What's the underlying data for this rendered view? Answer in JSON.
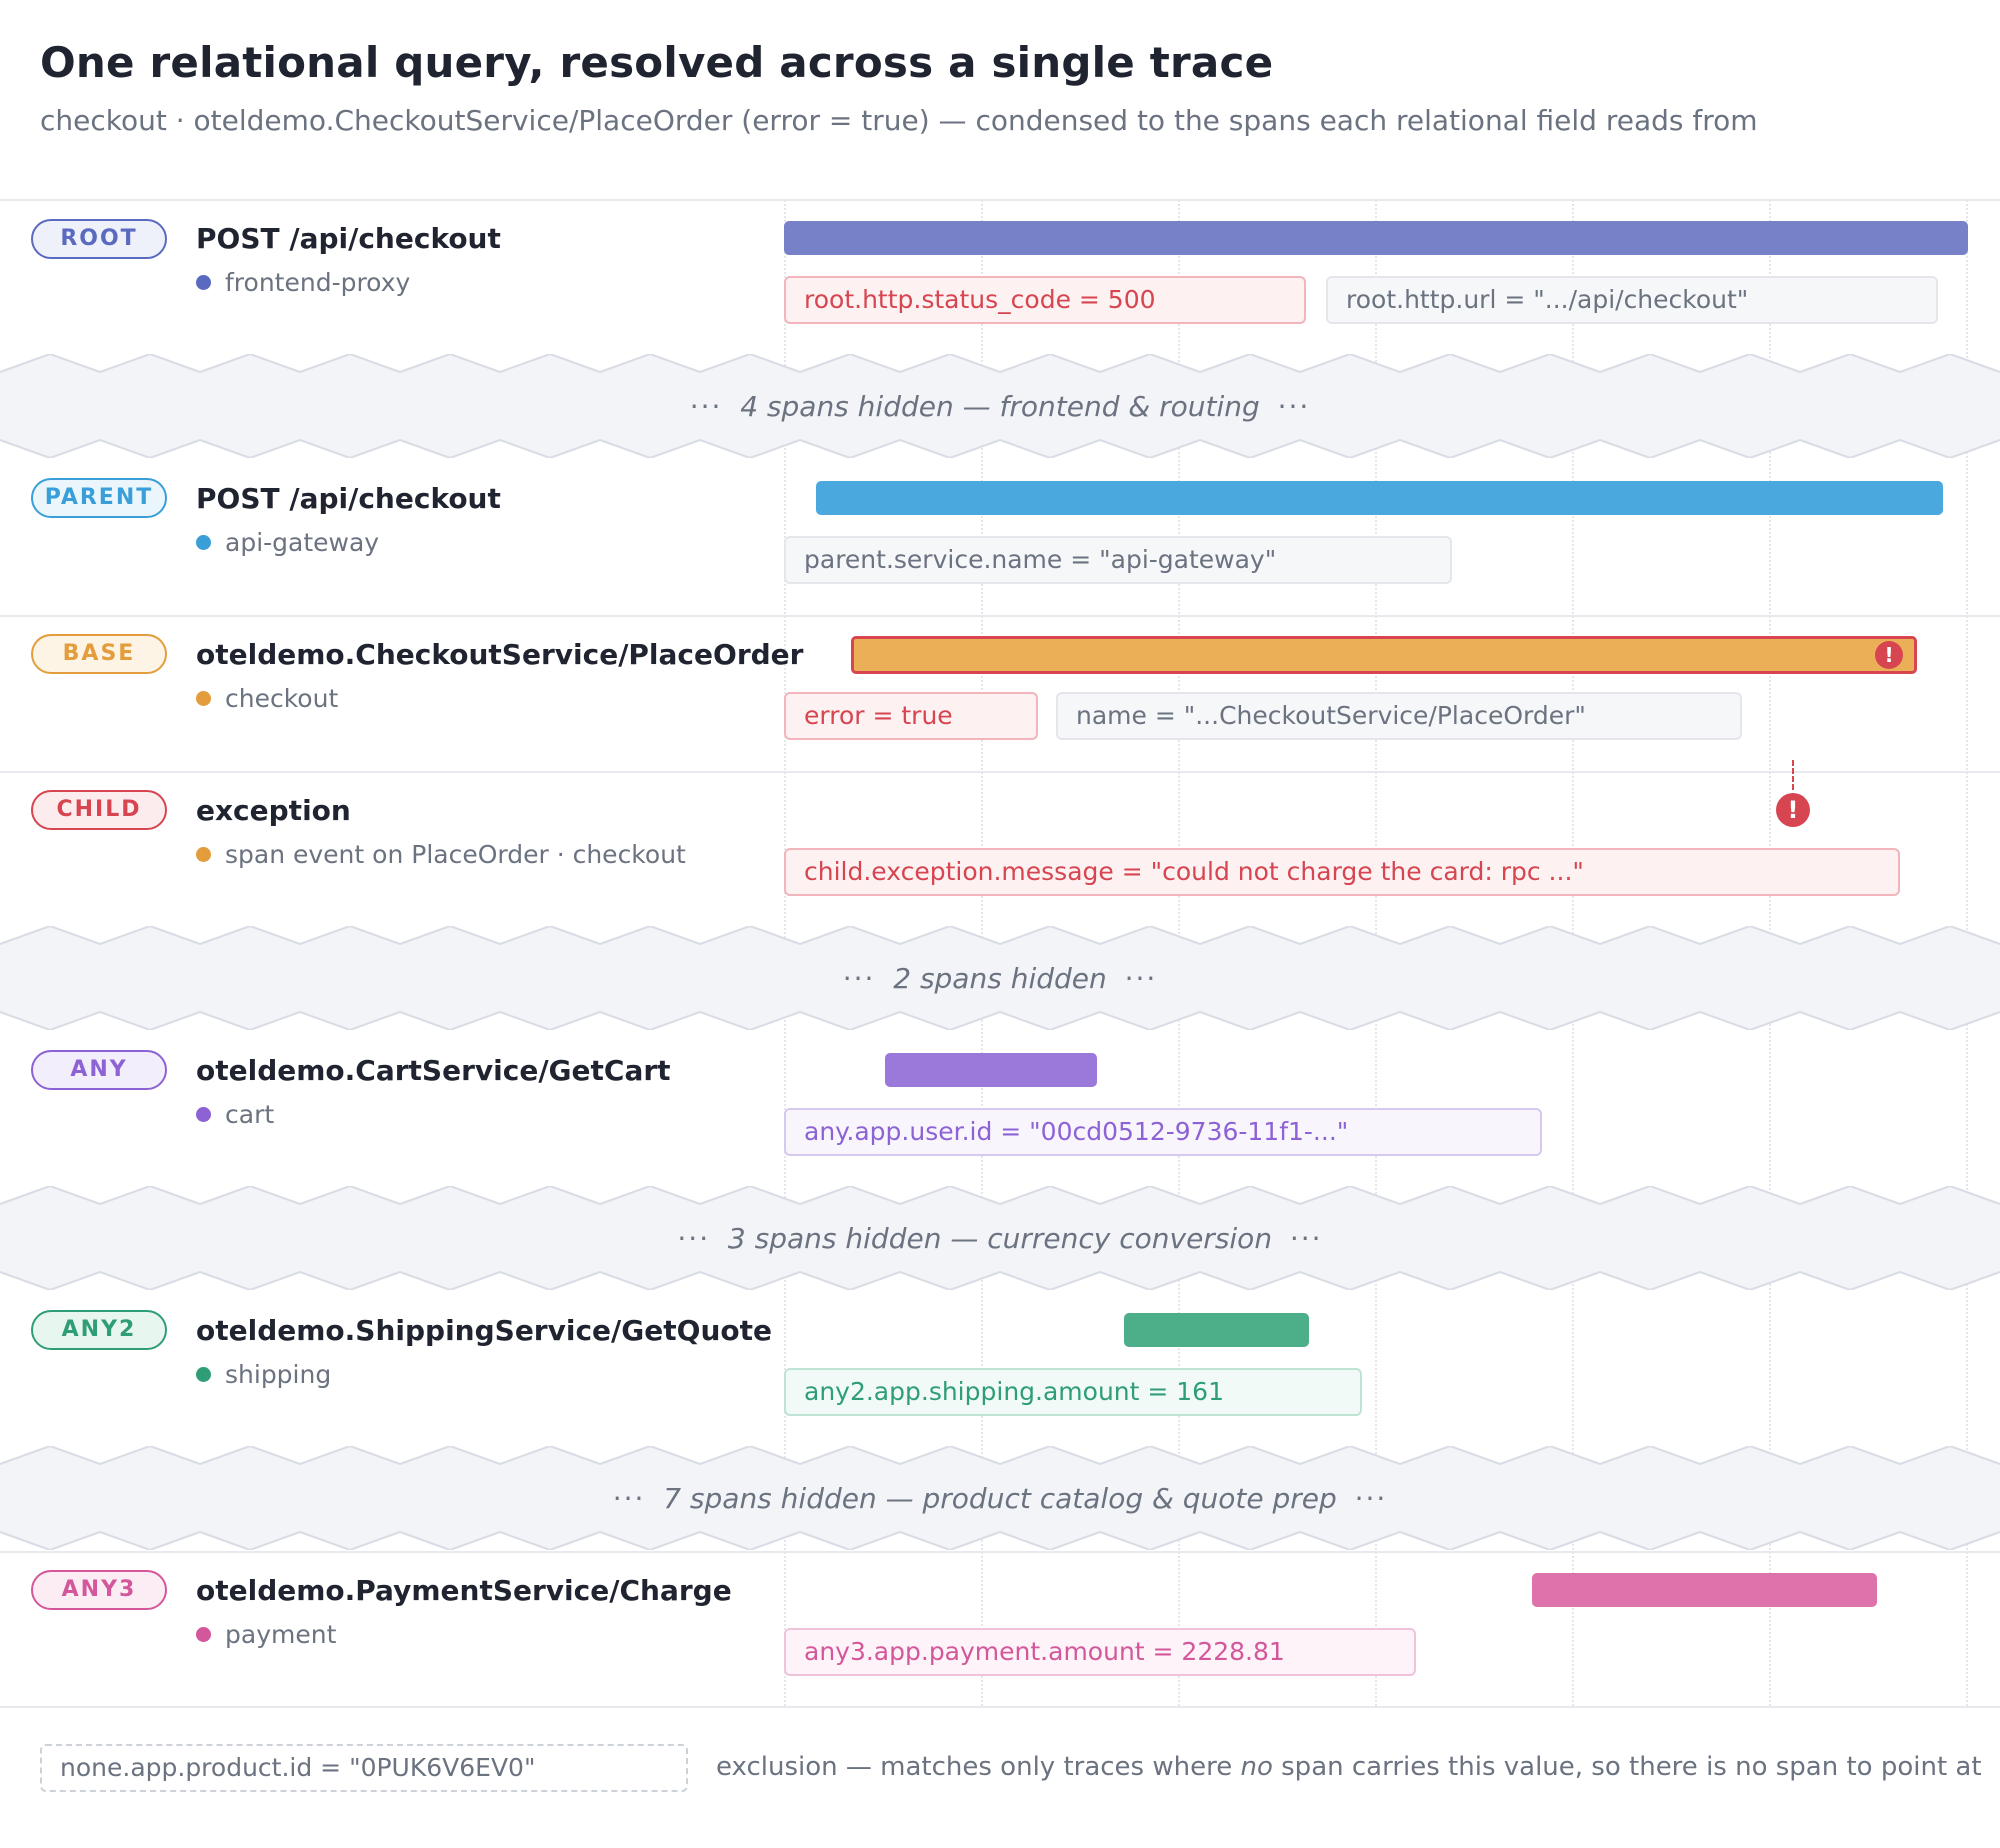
{
  "header": {
    "title": "One relational query, resolved across a single trace",
    "subtitle": "checkout · oteldemo.CheckoutService/PlaceOrder (error = true) — condensed to the spans each relational field reads from"
  },
  "colors": {
    "root": "#5a6bbf",
    "root_bar": "#7681c8",
    "parent": "#3a9fd8",
    "parent_bar": "#4aa8de",
    "base": "#e39d3c",
    "base_bar": "#ebb057",
    "child": "#d64550",
    "any": "#8c62d4",
    "any_bar": "#9b79da",
    "any2": "#2f9e76",
    "any2_bar": "#4caf8a",
    "any3": "#d4579b",
    "any3_bar": "#de72ab"
  },
  "rows": [
    {
      "role": "ROOT",
      "name": "POST /api/checkout",
      "service": "frontend-proxy",
      "bar": {
        "start": 0.0,
        "end": 1.0
      },
      "fields": [
        {
          "text": "root.http.status_code = 500",
          "highlight": true
        },
        {
          "text": "root.http.url = \".../api/checkout\"",
          "highlight": false
        }
      ]
    },
    {
      "role": "PARENT",
      "name": "POST /api/checkout",
      "service": "api-gateway",
      "bar": {
        "start": 0.027,
        "end": 0.979
      },
      "fields": [
        {
          "text": "parent.service.name = \"api-gateway\"",
          "highlight": false
        }
      ]
    },
    {
      "role": "BASE",
      "name": "oteldemo.CheckoutService/PlaceOrder",
      "service": "checkout",
      "bar": {
        "start": 0.057,
        "end": 0.957
      },
      "error": true,
      "fields": [
        {
          "text": "error = true",
          "highlight": true
        },
        {
          "text": "name = \"...CheckoutService/PlaceOrder\"",
          "highlight": false
        }
      ]
    },
    {
      "role": "CHILD",
      "name": "exception",
      "service": "span event on PlaceOrder · checkout",
      "event_at": 0.855,
      "fields": [
        {
          "text": "child.exception.message = \"could not charge the card: rpc ...\"",
          "highlight": true
        }
      ]
    },
    {
      "role": "ANY",
      "name": "oteldemo.CartService/GetCart",
      "service": "cart",
      "bar": {
        "start": 0.085,
        "end": 0.264
      },
      "fields": [
        {
          "text": "any.app.user.id = \"00cd0512-9736-11f1-...\"",
          "highlight": true
        }
      ]
    },
    {
      "role": "ANY2",
      "name": "oteldemo.ShippingService/GetQuote",
      "service": "shipping",
      "bar": {
        "start": 0.287,
        "end": 0.443
      },
      "fields": [
        {
          "text": "any2.app.shipping.amount = 161",
          "highlight": true
        }
      ]
    },
    {
      "role": "ANY3",
      "name": "oteldemo.PaymentService/Charge",
      "service": "payment",
      "bar": {
        "start": 0.632,
        "end": 0.923
      },
      "fields": [
        {
          "text": "any3.app.payment.amount = 2228.81",
          "highlight": true
        }
      ]
    }
  ],
  "gaps": [
    {
      "dots_left": "···",
      "label": "4 spans hidden — frontend & routing",
      "dots_right": "···"
    },
    {
      "dots_left": "···",
      "label": "2 spans hidden",
      "dots_right": "···"
    },
    {
      "dots_left": "···",
      "label": "3 spans hidden — currency conversion",
      "dots_right": "···"
    },
    {
      "dots_left": "···",
      "label": "7 spans hidden — product catalog & quote prep",
      "dots_right": "···"
    }
  ],
  "footer": {
    "none_field": "none.app.product.id = \"0PUK6V6EV0\"",
    "note_before": "exclusion — matches only traces where ",
    "note_em": "no",
    "note_after": " span carries this value, so there is no span to point at"
  }
}
